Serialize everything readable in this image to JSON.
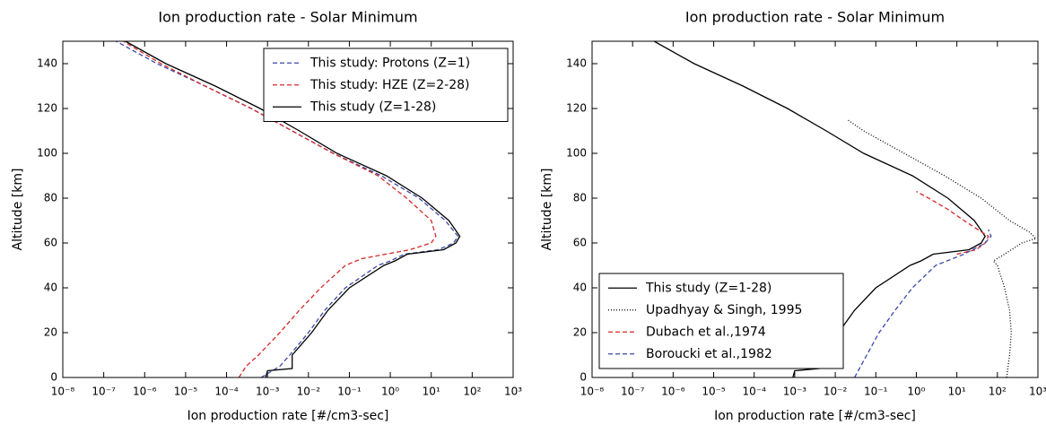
{
  "chart_data": [
    {
      "type": "line",
      "title": "Ion production rate - Solar Minimum",
      "xlabel": "Ion production rate [#/cm3-sec]",
      "ylabel": "Altitude [km]",
      "xscale": "log",
      "xlim": [
        1e-08,
        1000
      ],
      "ylim": [
        0,
        150
      ],
      "xticks": [
        {
          "value": 1e-08,
          "label": "10⁻⁸"
        },
        {
          "value": 1e-07,
          "label": "10⁻⁷"
        },
        {
          "value": 1e-06,
          "label": "10⁻⁶"
        },
        {
          "value": 1e-05,
          "label": "10⁻⁵"
        },
        {
          "value": 0.0001,
          "label": "10⁻⁴"
        },
        {
          "value": 0.001,
          "label": "10⁻³"
        },
        {
          "value": 0.01,
          "label": "10⁻²"
        },
        {
          "value": 0.1,
          "label": "10⁻¹"
        },
        {
          "value": 1,
          "label": "10⁰"
        },
        {
          "value": 10,
          "label": "10¹"
        },
        {
          "value": 100,
          "label": "10²"
        },
        {
          "value": 1000,
          "label": "10³"
        }
      ],
      "yticks": [
        0,
        20,
        40,
        60,
        80,
        100,
        120,
        140
      ],
      "legend": "upper right",
      "series": [
        {
          "name": "This study: Protons (Z=1)",
          "color": "#3a47a8",
          "linestyle": "dashed",
          "x": [
            0.0007,
            0.002,
            0.0035,
            0.01,
            0.025,
            0.08,
            0.5,
            1,
            2.2,
            15,
            35,
            45,
            22,
            5,
            0.6,
            0.04,
            0.004,
            0.0004,
            3e-05,
            2e-06,
            2e-07
          ],
          "y": [
            0,
            5,
            10,
            20,
            30,
            40,
            50,
            52,
            55,
            57,
            60,
            63,
            70,
            80,
            90,
            100,
            110,
            120,
            130,
            140,
            150
          ]
        },
        {
          "name": "This study: HZE (Z=2-28)",
          "color": "#d62728",
          "linestyle": "dashed",
          "x": [
            0.0002,
            0.0003,
            0.0006,
            0.002,
            0.006,
            0.02,
            0.04,
            0.08,
            0.2,
            3,
            10,
            13,
            10,
            2.5,
            0.5,
            0.04,
            0.004,
            0.0004,
            3e-05,
            2.5e-06,
            3e-07
          ],
          "y": [
            0,
            5,
            10,
            20,
            30,
            40,
            45,
            50,
            53,
            57,
            60,
            63,
            70,
            80,
            90,
            100,
            110,
            120,
            130,
            140,
            150
          ]
        },
        {
          "name": "This study (Z=1-28)",
          "color": "#000000",
          "linestyle": "solid",
          "x": [
            0.0009,
            0.001,
            0.004,
            0.004,
            0.012,
            0.03,
            0.1,
            0.7,
            1.3,
            2.6,
            20,
            40,
            50,
            27,
            6,
            0.8,
            0.05,
            0.006,
            0.00066,
            5.3e-05,
            3.3e-06,
            3.4e-07
          ],
          "y": [
            0,
            3,
            4,
            10,
            20,
            30,
            40,
            50,
            52,
            55,
            57,
            60,
            63,
            70,
            80,
            90,
            100,
            110,
            120,
            130,
            140,
            150
          ]
        }
      ]
    },
    {
      "type": "line",
      "title": "Ion production rate - Solar Minimum",
      "xlabel": "Ion production rate [#/cm3-sec]",
      "ylabel": "Altitude [km]",
      "xscale": "log",
      "xlim": [
        1e-08,
        1000
      ],
      "ylim": [
        0,
        150
      ],
      "xticks": [
        {
          "value": 1e-08,
          "label": "10⁻⁸"
        },
        {
          "value": 1e-07,
          "label": "10⁻⁷"
        },
        {
          "value": 1e-06,
          "label": "10⁻⁶"
        },
        {
          "value": 1e-05,
          "label": "10⁻⁵"
        },
        {
          "value": 0.0001,
          "label": "10⁻⁴"
        },
        {
          "value": 0.001,
          "label": "10⁻³"
        },
        {
          "value": 0.01,
          "label": "10⁻²"
        },
        {
          "value": 0.1,
          "label": "10⁻¹"
        },
        {
          "value": 1,
          "label": "10⁰"
        },
        {
          "value": 10,
          "label": "10¹"
        },
        {
          "value": 100,
          "label": "10²"
        },
        {
          "value": 1000,
          "label": "10³"
        }
      ],
      "yticks": [
        0,
        20,
        40,
        60,
        80,
        100,
        120,
        140
      ],
      "legend": "lower left",
      "series": [
        {
          "name": "This study (Z=1-28)",
          "color": "#000000",
          "linestyle": "solid",
          "x": [
            0.0009,
            0.001,
            0.004,
            0.004,
            0.012,
            0.03,
            0.1,
            0.7,
            1.3,
            2.6,
            20,
            40,
            50,
            27,
            6,
            0.8,
            0.05,
            0.006,
            0.00066,
            5.3e-05,
            3.3e-06,
            3.4e-07
          ],
          "y": [
            0,
            3,
            4,
            10,
            20,
            30,
            40,
            50,
            52,
            55,
            57,
            60,
            63,
            70,
            80,
            90,
            100,
            110,
            120,
            130,
            140,
            150
          ]
        },
        {
          "name": "Upadhyay & Singh, 1995",
          "color": "#000000",
          "linestyle": "dotted",
          "x": [
            170,
            200,
            220,
            200,
            150,
            100,
            80,
            150,
            400,
            900,
            600,
            200,
            40,
            5,
            0.5,
            0.05,
            0.02
          ],
          "y": [
            0,
            10,
            20,
            30,
            40,
            50,
            52,
            55,
            60,
            62,
            65,
            70,
            80,
            90,
            100,
            110,
            115
          ]
        },
        {
          "name": "Dubach et al.,1974",
          "color": "#d62728",
          "linestyle": "dashed",
          "x": [
            10,
            30,
            50,
            60,
            40,
            15,
            6,
            2,
            1
          ],
          "y": [
            55,
            57,
            60,
            63,
            65,
            70,
            75,
            80,
            83
          ]
        },
        {
          "name": "Boroucki et al.,1982",
          "color": "#3a47a8",
          "linestyle": "dashed",
          "x": [
            0.03,
            0.06,
            0.12,
            0.3,
            0.8,
            3,
            15,
            50,
            70,
            60
          ],
          "y": [
            0,
            10,
            20,
            30,
            40,
            50,
            55,
            60,
            63,
            66
          ]
        }
      ]
    }
  ]
}
